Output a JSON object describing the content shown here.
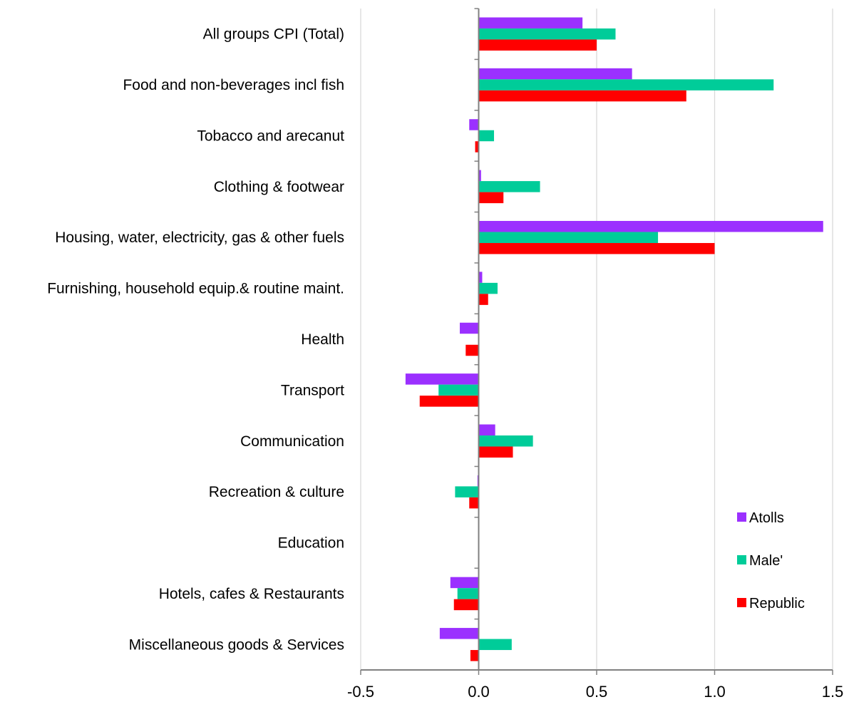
{
  "chart_data": {
    "type": "bar",
    "orientation": "horizontal",
    "categories": [
      "All groups CPI (Total)",
      "Food and non-beverages incl fish",
      "Tobacco and arecanut",
      "Clothing & footwear",
      "Housing, water, electricity, gas & other fuels",
      "Furnishing, household equip.& routine maint.",
      "Health",
      "Transport",
      "Communication",
      "Recreation & culture ",
      "Education",
      "Hotels, cafes & Restaurants ",
      "Miscellaneous goods & Services "
    ],
    "series": [
      {
        "name": "Atolls",
        "color": "#9B30FF",
        "values": [
          0.44,
          0.65,
          -0.04,
          0.01,
          1.46,
          0.015,
          -0.08,
          -0.31,
          0.07,
          -0.005,
          0.0,
          -0.12,
          -0.165
        ]
      },
      {
        "name": "Male'",
        "color": "#00CC99",
        "values": [
          0.58,
          1.25,
          0.065,
          0.26,
          0.76,
          0.08,
          0.0,
          -0.17,
          0.23,
          -0.1,
          0.0,
          -0.09,
          0.14
        ]
      },
      {
        "name": "Republic",
        "color": "#FF0000",
        "values": [
          0.5,
          0.88,
          -0.015,
          0.105,
          1.0,
          0.04,
          -0.055,
          -0.25,
          0.145,
          -0.04,
          0.0,
          -0.105,
          -0.035
        ]
      }
    ],
    "xlim": [
      -0.5,
      1.5
    ],
    "xticks": [
      "-0.5",
      "0.0",
      "0.5",
      "1.0",
      "1.5"
    ],
    "xtick_values": [
      -0.5,
      0,
      0.5,
      1.0,
      1.5
    ],
    "grid": "vertical",
    "legend_position": "bottom-right",
    "title": "",
    "xlabel": "",
    "ylabel": ""
  }
}
